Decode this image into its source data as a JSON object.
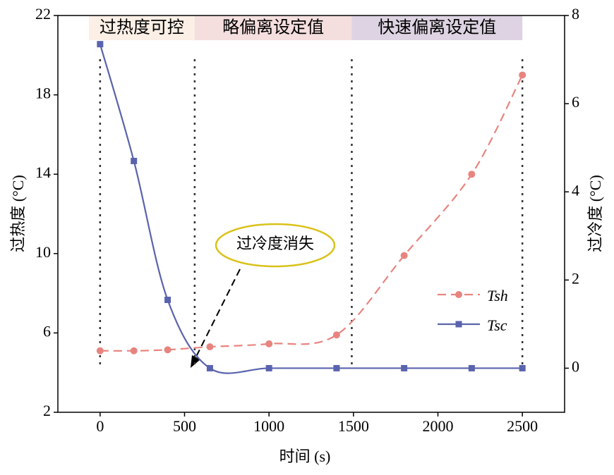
{
  "chart_data": {
    "type": "line",
    "x_label": "时间 (s)",
    "y_label": "过热度 (°C)",
    "y2_label": "过冷度 (°C)",
    "x": [
      0,
      200,
      400,
      650,
      1000,
      1400,
      1800,
      2200,
      2500
    ],
    "series": [
      {
        "name": "Tsh",
        "color": "#e8847f",
        "dash": true,
        "marker": "circle",
        "axis": "y",
        "values": [
          5.1,
          5.1,
          5.15,
          5.3,
          5.45,
          5.9,
          9.9,
          14.0,
          19.0
        ]
      },
      {
        "name": "Tsc",
        "color": "#5a63ad",
        "dash": false,
        "marker": "square",
        "axis": "y2",
        "values": [
          7.35,
          4.7,
          1.55,
          0,
          0,
          0,
          0,
          0,
          0
        ]
      }
    ],
    "xlim": [
      -250,
      2750
    ],
    "xticks": [
      0,
      500,
      1000,
      1500,
      2000,
      2500
    ],
    "ylim": [
      2,
      22
    ],
    "yticks": [
      2,
      6,
      10,
      14,
      18,
      22
    ],
    "y2lim": [
      -1,
      8
    ],
    "y2ticks": [
      0,
      2,
      4,
      6,
      8
    ],
    "phase_boundaries": [
      0,
      560,
      1490,
      2500
    ],
    "phases": [
      {
        "label": "过热度可控",
        "color": "#fbefe6"
      },
      {
        "label": "略偏离设定值",
        "color": "#f5dede"
      },
      {
        "label": "快速偏离设定值",
        "color": "#ddd3e2"
      }
    ],
    "annotation": "过冷度消失",
    "legend": "center-right"
  }
}
